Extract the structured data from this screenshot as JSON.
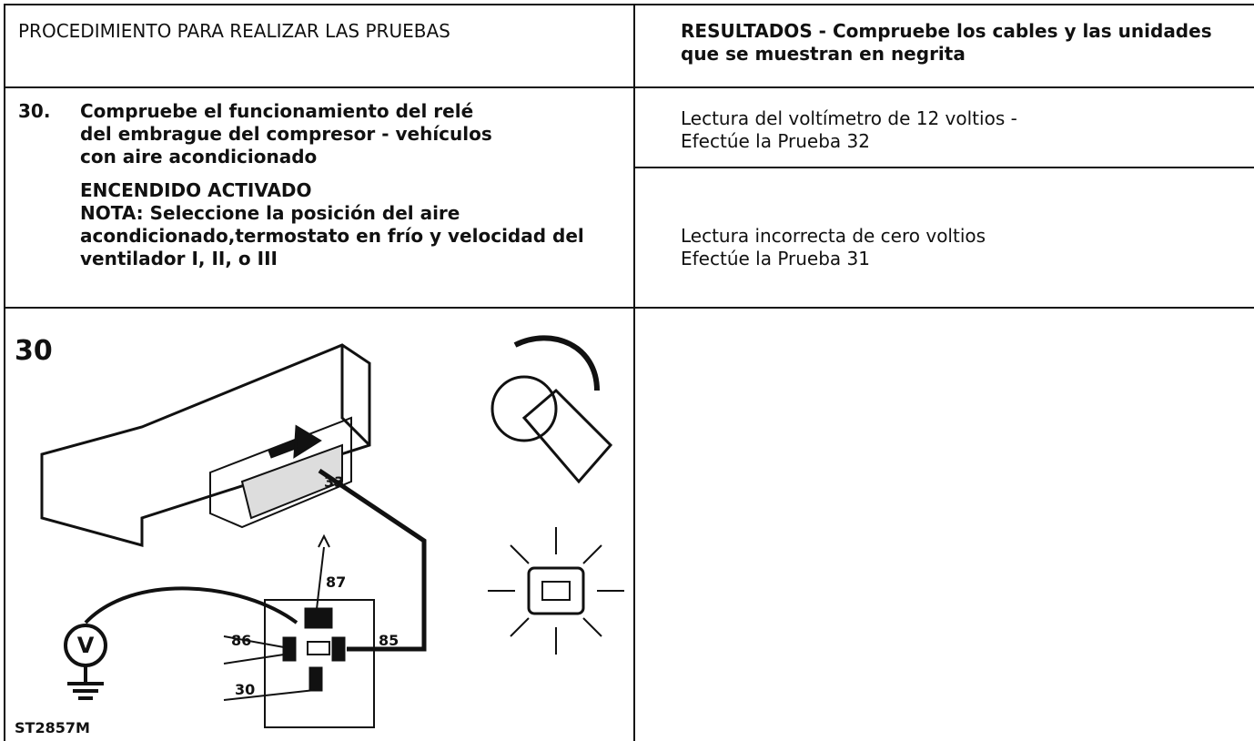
{
  "header": {
    "procedure": "PROCEDIMIENTO PARA REALIZAR LAS PRUEBAS",
    "results": "RESULTADOS - Compruebe los cables y las unidades que se muestran en negrita"
  },
  "step": {
    "number": "30.",
    "title": "Compruebe el funcionamiento del relé del embrague del compresor - vehículos con aire acondicionado",
    "condition": "ENCENDIDO ACTIVADO",
    "note": "NOTA: Seleccione la posición del aire acondicionado,termostato en frío y velocidad del ventilador I, II, o III"
  },
  "results": [
    {
      "reading": "Lectura del voltímetro de 12 voltios -",
      "action": "Efectúe la Prueba 32"
    },
    {
      "reading": "Lectura incorrecta de cero voltios",
      "action": "Efectúe la Prueba 31"
    }
  ],
  "figure": {
    "number": "30",
    "pin_connector": "33",
    "pin_87": "87",
    "pin_86": "86",
    "pin_85": "85",
    "pin_30": "30",
    "meter": "V",
    "code": "ST2857M"
  }
}
